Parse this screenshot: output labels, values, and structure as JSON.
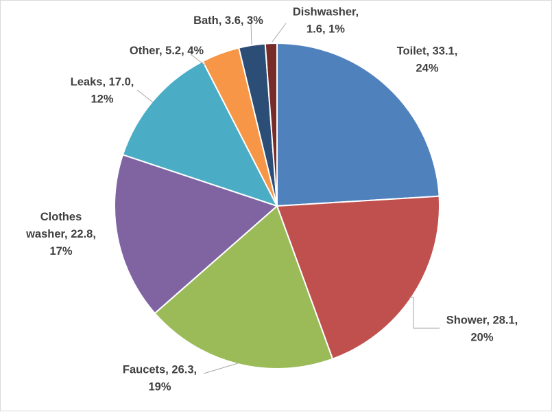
{
  "chart_data": {
    "type": "pie",
    "title": "",
    "start": "12 o'clock",
    "direction": "clockwise",
    "slices": [
      {
        "category": "Toilet",
        "value": 33.1,
        "percent": "24%",
        "color": "#4F81BD",
        "label_lines": [
          "Toilet, 33.1,",
          "24%"
        ]
      },
      {
        "category": "Shower",
        "value": 28.1,
        "percent": "20%",
        "color": "#C0504D",
        "label_lines": [
          "Shower, 28.1,",
          "20%"
        ]
      },
      {
        "category": "Faucets",
        "value": 26.3,
        "percent": "19%",
        "color": "#9BBB59",
        "label_lines": [
          "Faucets, 26.3,",
          "19%"
        ]
      },
      {
        "category": "Clothes washer",
        "value": 22.8,
        "percent": "17%",
        "color": "#8064A2",
        "label_lines": [
          "Clothes",
          "washer, 22.8,",
          "17%"
        ]
      },
      {
        "category": "Leaks",
        "value": 17.0,
        "percent": "12%",
        "color": "#4BACC6",
        "label_lines": [
          "Leaks, 17.0,",
          "12%"
        ]
      },
      {
        "category": "Other",
        "value": 5.2,
        "percent": "4%",
        "color": "#F79646",
        "label_lines": [
          "Other, 5.2, 4%"
        ]
      },
      {
        "category": "Bath",
        "value": 3.6,
        "percent": "3%",
        "color": "#2C4D75",
        "label_lines": [
          "Bath, 3.6, 3%"
        ]
      },
      {
        "category": "Dishwasher",
        "value": 1.6,
        "percent": "1%",
        "color": "#772C2A",
        "label_lines": [
          "Dishwasher,",
          "1.6, 1%"
        ]
      }
    ]
  }
}
